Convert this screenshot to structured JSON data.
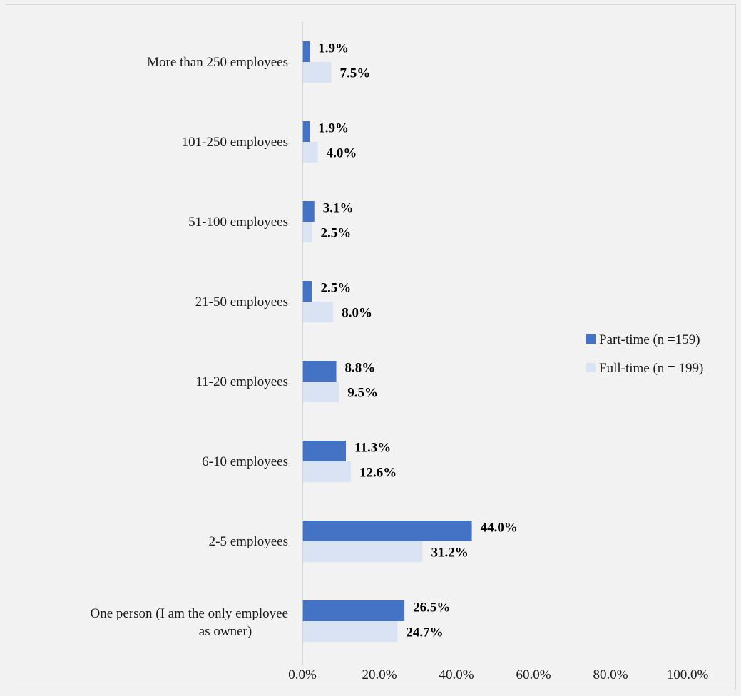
{
  "chart_data": {
    "type": "bar",
    "orientation": "horizontal",
    "categories": [
      "More than 250 employees",
      "101-250 employees",
      "51-100 employees",
      "21-50 employees",
      "11-20 employees",
      "6-10 employees",
      "2-5 employees",
      "One person (I am the only employee as owner)"
    ],
    "series": [
      {
        "name": "Part-time (n =159)",
        "color": "#4472c4",
        "values": [
          1.9,
          1.9,
          3.1,
          2.5,
          8.8,
          11.3,
          44.0,
          26.5
        ],
        "labels": [
          "1.9%",
          "1.9%",
          "3.1%",
          "2.5%",
          "8.8%",
          "11.3%",
          "44.0%",
          "26.5%"
        ]
      },
      {
        "name": "Full-time (n = 199)",
        "color": "#dae3f3",
        "values": [
          7.5,
          4.0,
          2.5,
          8.0,
          9.5,
          12.6,
          31.2,
          24.7
        ],
        "labels": [
          "7.5%",
          "4.0%",
          "2.5%",
          "8.0%",
          "9.5%",
          "12.6%",
          "31.2%",
          "24.7%"
        ]
      }
    ],
    "xlim": [
      0,
      100
    ],
    "x_ticks": [
      "0.0%",
      "20.0%",
      "40.0%",
      "60.0%",
      "80.0%",
      "100.0%"
    ],
    "title": "",
    "xlabel": "",
    "ylabel": "",
    "legend_position": "right",
    "grid": false
  }
}
